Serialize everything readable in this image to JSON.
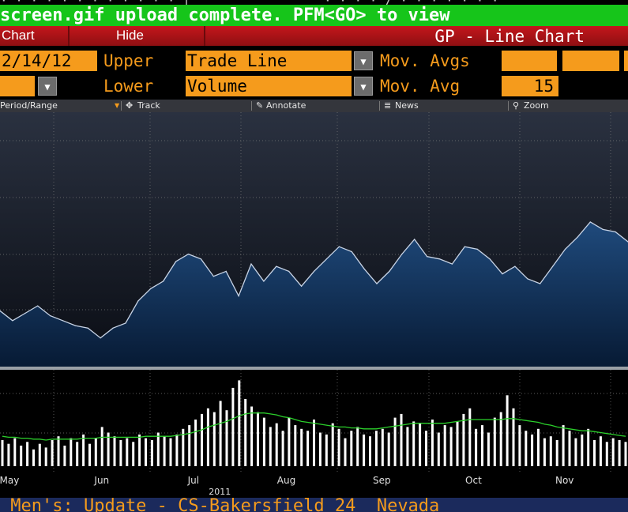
{
  "top_strip": {
    "left": "· · ·  · · ·  · · · · · ·  |",
    "right": "· ·  · · / · ·  · ·  · · ·"
  },
  "banner": {
    "text": "screen.gif upload complete. PFM<GO> to view"
  },
  "toolbar_red": {
    "chart_label": "Chart",
    "hide_label": "Hide",
    "title": "GP - Line Chart"
  },
  "controls": {
    "date_value": "2/14/12",
    "upper_label": "Upper",
    "upper_value": "Trade Line",
    "lower_label": "Lower",
    "lower_value": "Volume",
    "mov_avgs_label": "Mov. Avgs",
    "mov_avg_label": "Mov. Avg",
    "mov_avg_value": "15",
    "blank_value": "",
    "dropdown_glyph": "▼"
  },
  "chart_toolbar": {
    "period": "Period/Range",
    "track": "Track",
    "annotate": "Annotate",
    "news": "News",
    "zoom": "Zoom",
    "marker": "▼",
    "track_icon": "✥",
    "annotate_icon": "✎",
    "news_icon": "≣",
    "zoom_icon": "⚲"
  },
  "ticker": {
    "text": " Men's: Update - CS-Bakersfield 24  Nevada"
  },
  "colors": {
    "price_line": "#c8d4e6",
    "area_top": "#1f4a7c",
    "area_bottom": "#071a34",
    "grid": "#7a7a7a",
    "volume_bar": "#ffffff",
    "mov_avg_line": "#2bcf2b",
    "accent": "#f59b1c"
  },
  "chart_data": [
    {
      "type": "area",
      "series_label": "Trade Line",
      "grid": true,
      "x_domain": [
        0,
        100
      ],
      "ylim": [
        0,
        100
      ],
      "x": [
        0,
        2,
        4,
        6,
        8,
        10,
        12,
        14,
        16,
        18,
        20,
        22,
        24,
        26,
        28,
        30,
        32,
        34,
        36,
        38,
        40,
        42,
        44,
        46,
        48,
        50,
        52,
        54,
        56,
        58,
        60,
        62,
        64,
        66,
        68,
        70,
        72,
        74,
        76,
        78,
        80,
        82,
        84,
        86,
        88,
        90,
        92,
        94,
        96,
        98,
        100
      ],
      "y": [
        22,
        18,
        21,
        24,
        20,
        18,
        16,
        15,
        11,
        15,
        17,
        26,
        31,
        34,
        42,
        45,
        43,
        36,
        38,
        28,
        41,
        34,
        40,
        38,
        32,
        38,
        43,
        48,
        46,
        39,
        33,
        38,
        45,
        51,
        44,
        43,
        41,
        48,
        47,
        43,
        37,
        40,
        35,
        33,
        40,
        47,
        52,
        58,
        55,
        54,
        50
      ]
    },
    {
      "type": "bar",
      "series_label": "Volume",
      "grid": true,
      "x_domain": [
        0,
        100
      ],
      "ylim": [
        0,
        100
      ],
      "x": [
        0,
        1,
        2,
        3,
        4,
        5,
        6,
        7,
        8,
        9,
        10,
        11,
        12,
        13,
        14,
        15,
        16,
        17,
        18,
        19,
        20,
        21,
        22,
        23,
        24,
        25,
        26,
        27,
        28,
        29,
        30,
        31,
        32,
        33,
        34,
        35,
        36,
        37,
        38,
        39,
        40,
        41,
        42,
        43,
        44,
        45,
        46,
        47,
        48,
        49,
        50,
        51,
        52,
        53,
        54,
        55,
        56,
        57,
        58,
        59,
        60,
        61,
        62,
        63,
        64,
        65,
        66,
        67,
        68,
        69,
        70,
        71,
        72,
        73,
        74,
        75,
        76,
        77,
        78,
        79,
        80,
        81,
        82,
        83,
        84,
        85,
        86,
        87,
        88,
        89,
        90,
        91,
        92,
        93,
        94,
        95,
        96,
        97,
        98,
        99,
        100
      ],
      "values": [
        28,
        24,
        30,
        22,
        26,
        18,
        24,
        20,
        28,
        32,
        22,
        30,
        26,
        34,
        24,
        30,
        42,
        36,
        32,
        28,
        30,
        26,
        34,
        30,
        28,
        36,
        32,
        30,
        34,
        40,
        44,
        50,
        56,
        62,
        58,
        70,
        60,
        84,
        92,
        72,
        64,
        58,
        52,
        42,
        46,
        38,
        52,
        44,
        40,
        38,
        50,
        36,
        34,
        46,
        40,
        30,
        38,
        42,
        34,
        32,
        38,
        40,
        36,
        52,
        56,
        42,
        48,
        46,
        38,
        50,
        36,
        44,
        42,
        48,
        56,
        62,
        40,
        44,
        36,
        52,
        58,
        76,
        62,
        44,
        38,
        34,
        40,
        30,
        32,
        28,
        44,
        38,
        30,
        34,
        40,
        28,
        32,
        26,
        30,
        28,
        26
      ],
      "mov_avg": [
        32,
        31,
        31,
        30,
        30,
        29,
        29,
        28,
        29,
        29,
        29,
        29,
        29,
        30,
        30,
        30,
        31,
        31,
        31,
        31,
        31,
        31,
        31,
        32,
        32,
        32,
        32,
        32,
        33,
        34,
        35,
        37,
        39,
        42,
        44,
        46,
        48,
        51,
        54,
        56,
        57,
        57,
        57,
        56,
        55,
        53,
        52,
        50,
        48,
        47,
        46,
        45,
        44,
        43,
        42,
        42,
        41,
        41,
        40,
        40,
        40,
        41,
        42,
        43,
        44,
        45,
        46,
        46,
        46,
        46,
        46,
        46,
        47,
        48,
        49,
        50,
        50,
        50,
        50,
        50,
        50,
        51,
        51,
        50,
        49,
        48,
        47,
        45,
        44,
        42,
        41,
        40,
        39,
        38,
        38,
        37,
        36,
        35,
        34,
        33,
        32
      ]
    }
  ],
  "x_axis": {
    "labels": [
      {
        "label": "May",
        "pos": 1.5
      },
      {
        "label": "Jun",
        "pos": 16.2
      },
      {
        "label": "Jul",
        "pos": 30.8
      },
      {
        "label": "Aug",
        "pos": 45.6
      },
      {
        "label": "Sep",
        "pos": 60.8
      },
      {
        "label": "Oct",
        "pos": 75.4
      },
      {
        "label": "Nov",
        "pos": 89.9
      }
    ],
    "year": "2011",
    "year_pos": 35
  }
}
